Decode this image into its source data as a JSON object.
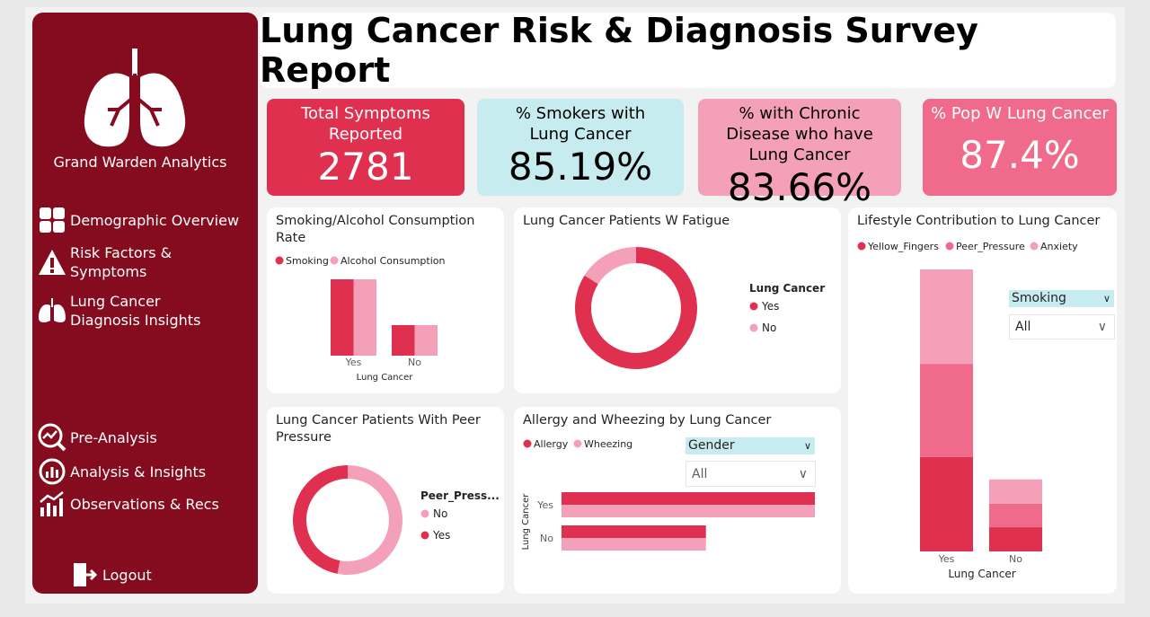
{
  "sidebar": {
    "brand": "Grand Warden Analytics",
    "nav": [
      "Demographic Overview",
      "Risk Factors & Symptoms",
      "Lung Cancer Diagnosis Insights",
      "Pre-Analysis",
      "Analysis & Insights",
      "Observations & Recs"
    ],
    "logout": "Logout"
  },
  "header": {
    "title": "Lung Cancer Risk & Diagnosis Survey Report"
  },
  "kpis": [
    {
      "label": "Total Symptoms Reported",
      "value": 2781
    },
    {
      "label": "% Smokers with Lung Cancer",
      "value": "85.19%"
    },
    {
      "label": "% with Chronic Disease who have Lung Cancer",
      "value": "83.66%"
    },
    {
      "label": "% Pop W Lung Cancer",
      "value": "87.4%"
    }
  ],
  "slicers": [
    {
      "field": "Smoking",
      "selection": "All"
    },
    {
      "field": "Gender",
      "selection": "All"
    }
  ],
  "chart_data": [
    {
      "type": "bar",
      "title": "Smoking/Alcohol Consumption Rate",
      "x_label": "Lung Cancer",
      "categories": [
        "Yes",
        "No"
      ],
      "series": [
        {
          "name": "Smoking",
          "color": "#e0304f",
          "values": [
            150,
            60
          ]
        },
        {
          "name": "Alcohol Consumption",
          "color": "#f4a0b8",
          "values": [
            150,
            60
          ]
        }
      ]
    },
    {
      "type": "pie",
      "title": "Lung Cancer Patients W Fatigue",
      "legend_title": "Lung Cancer",
      "categories": [
        "Yes",
        "No"
      ],
      "values": [
        84,
        16
      ],
      "colors": [
        "#e0304f",
        "#f4a0b8"
      ]
    },
    {
      "type": "bar",
      "stacked": true,
      "title": "Lifestyle Contribution to Lung Cancer",
      "x_label": "Lung Cancer",
      "categories": [
        "Yes",
        "No"
      ],
      "series": [
        {
          "name": "Yellow_Fingers",
          "color": "#e0304f",
          "values": [
            160,
            41
          ]
        },
        {
          "name": "Peer_Pressure",
          "color": "#f06b8b",
          "values": [
            158,
            40
          ]
        },
        {
          "name": "Anxiety",
          "color": "#f4a0b8",
          "values": [
            160,
            41
          ]
        }
      ]
    },
    {
      "type": "pie",
      "title": "Lung Cancer Patients With Peer Pressure",
      "legend_title": "Peer_Press...",
      "categories": [
        "No",
        "Yes"
      ],
      "values": [
        53,
        47
      ],
      "colors": [
        "#f4a0b8",
        "#e0304f"
      ]
    },
    {
      "type": "bar",
      "orientation": "horizontal",
      "title": "Allergy and Wheezing by Lung Cancer",
      "y_label": "Lung Cancer",
      "categories": [
        "Yes",
        "No"
      ],
      "series": [
        {
          "name": "Allergy",
          "color": "#e0304f",
          "values": [
            100,
            57
          ]
        },
        {
          "name": "Wheezing",
          "color": "#f4a0b8",
          "values": [
            100,
            57
          ]
        }
      ]
    }
  ]
}
